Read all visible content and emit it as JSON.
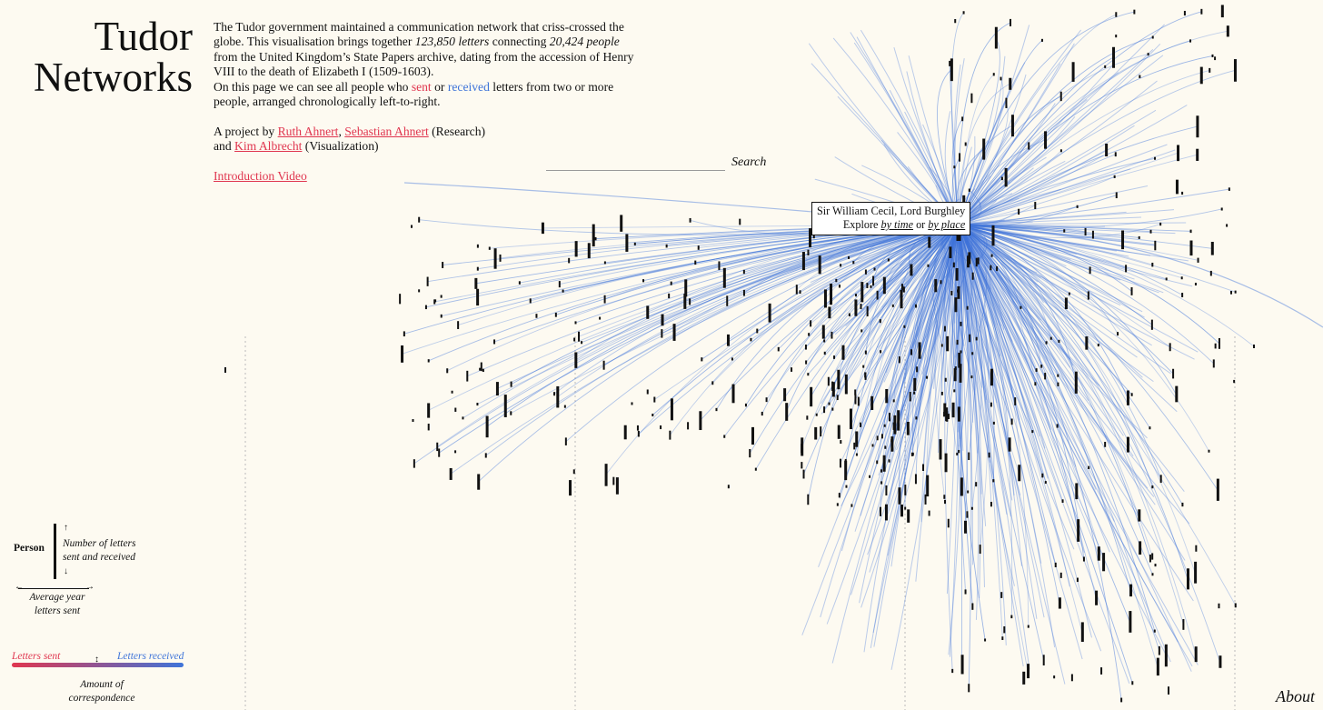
{
  "title": {
    "line1": "Tudor",
    "line2": "Networks"
  },
  "intro": {
    "t1": "The Tudor government maintained a communication network that criss-crossed the globe. This visualisation brings together ",
    "letters_count": "123,850 letters",
    "t2": " connecting ",
    "people_count": "20,424 people",
    "t3": " from the United Kingdom’s State Papers archive, dating from the accession of Henry VIII to the death of Elizabeth I (1509-1603).",
    "t4": "On this page we can see all people who ",
    "sent": "sent",
    "t5": " or ",
    "received": "received",
    "t6": " letters from two or more people, arranged chronologically left-to-right."
  },
  "credits": {
    "prefix": "A project by ",
    "person1": "Ruth Ahnert",
    "sep": ", ",
    "person2": "Sebastian Ahnert",
    "role1": " (Research)",
    "and": "and ",
    "person3": "Kim Albrecht",
    "role2": " (Visualization)"
  },
  "video_link": "Introduction Video",
  "search": {
    "label": "Search",
    "value": ""
  },
  "tooltip": {
    "name": "Sir William Cecil, Lord Burghley",
    "explore": "Explore ",
    "by_time": "by time",
    "or": " or ",
    "by_place": "by place"
  },
  "legend": {
    "person": "Person",
    "count_line1": "Number of letters",
    "count_line2": "sent and received",
    "year_line1": "Average year",
    "year_line2": "letters sent",
    "sent": "Letters sent",
    "received": "Letters received",
    "amount_line1": "Amount of",
    "amount_line2": "correspondence"
  },
  "about": "About",
  "colors": {
    "sent": "#e0364f",
    "received": "#3f74d9",
    "background": "#fdfaf1"
  }
}
